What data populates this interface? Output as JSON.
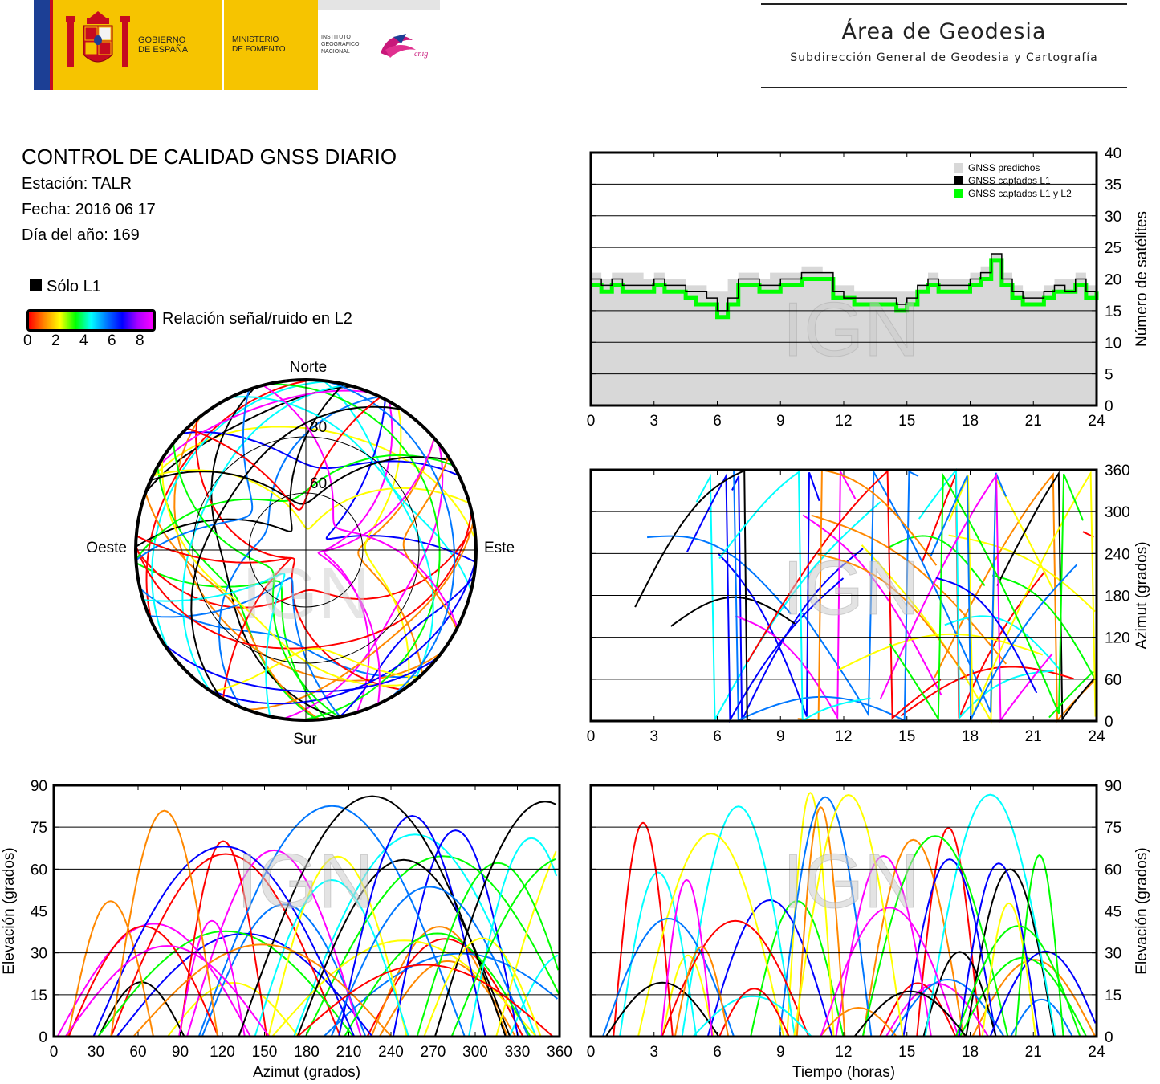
{
  "header": {
    "gobierno": [
      "GOBIERNO",
      "DE ESPAÑA"
    ],
    "ministerio": [
      "MINISTERIO",
      "DE FOMENTO"
    ],
    "instituto": [
      "INSTITUTO",
      "GEOGRÁFICO",
      "NACIONAL"
    ],
    "cnig": "cnig",
    "area_title": "Área de Geodesia",
    "area_subtitle": "Subdirección General de Geodesia y Cartografía"
  },
  "info": {
    "title": "CONTROL DE CALIDAD GNSS DIARIO",
    "station": "Estación: TALR",
    "date": "Fecha: 2016 06 17",
    "doy": "Día del año: 169"
  },
  "legend": {
    "solo_l1": "Sólo L1",
    "snr_label": "Relación señal/ruido en L2",
    "snr_ticks": [
      "0",
      "2",
      "4",
      "6",
      "8"
    ]
  },
  "watermark": "IGN",
  "colors": {
    "predicted": "#d8d8d8",
    "captured_l1": "#000000",
    "captured_l1_l2": "#00ff00",
    "snr_scale": [
      "#ff0000",
      "#ff8800",
      "#ffff00",
      "#00ff00",
      "#00ffff",
      "#0077ff",
      "#0000ff",
      "#ff00ff"
    ]
  },
  "chart_data": [
    {
      "type": "area",
      "id": "satellites",
      "ylabel": "Número de satélites",
      "xlim": [
        0,
        24
      ],
      "ylim": [
        0,
        40
      ],
      "xticks": [
        "0",
        "3",
        "6",
        "9",
        "12",
        "15",
        "18",
        "21",
        "24"
      ],
      "yticks": [
        "0",
        "5",
        "10",
        "15",
        "20",
        "25",
        "30",
        "35",
        "40"
      ],
      "grid": true,
      "legend_position": "top-right",
      "series": [
        {
          "name": "GNSS predichos",
          "x": [
            0,
            0.5,
            1,
            1.5,
            2,
            2.5,
            3,
            3.5,
            4,
            4.5,
            5,
            5.5,
            6,
            6.5,
            7,
            7.5,
            8,
            8.5,
            9,
            9.5,
            10,
            10.5,
            11,
            11.5,
            12,
            12.5,
            13,
            13.5,
            14,
            14.5,
            15,
            15.5,
            16,
            16.5,
            17,
            17.5,
            18,
            18.5,
            19,
            19.5,
            20,
            20.5,
            21,
            21.5,
            22,
            22.5,
            23,
            23.5,
            24
          ],
          "values": [
            21,
            20,
            21,
            21,
            21,
            20,
            21,
            20,
            20,
            19,
            19,
            18,
            18,
            20,
            21,
            21,
            20,
            21,
            21,
            21,
            22,
            22,
            21,
            19,
            19,
            18,
            18,
            18,
            18,
            18,
            18,
            19,
            21,
            20,
            20,
            20,
            21,
            22,
            24,
            21,
            19,
            18,
            18,
            19,
            20,
            20,
            21,
            19,
            20
          ]
        },
        {
          "name": "GNSS captados L1",
          "x": [
            0,
            0.5,
            1,
            1.5,
            2,
            2.5,
            3,
            3.5,
            4,
            4.5,
            5,
            5.5,
            6,
            6.5,
            7,
            7.5,
            8,
            8.5,
            9,
            9.5,
            10,
            10.5,
            11,
            11.5,
            12,
            12.5,
            13,
            13.5,
            14,
            14.5,
            15,
            15.5,
            16,
            16.5,
            17,
            17.5,
            18,
            18.5,
            19,
            19.5,
            20,
            20.5,
            21,
            21.5,
            22,
            22.5,
            23,
            23.5,
            24
          ],
          "values": [
            20,
            19,
            20,
            19,
            19,
            19,
            20,
            19,
            19,
            18,
            18,
            17,
            15,
            17,
            20,
            20,
            19,
            19,
            20,
            20,
            21,
            21,
            21,
            18,
            17,
            17,
            17,
            17,
            17,
            16,
            17,
            19,
            20,
            19,
            19,
            19,
            20,
            21,
            24,
            20,
            18,
            17,
            17,
            18,
            19,
            18,
            20,
            18,
            19
          ]
        },
        {
          "name": "GNSS captados L1 y L2",
          "x": [
            0,
            0.5,
            1,
            1.5,
            2,
            2.5,
            3,
            3.5,
            4,
            4.5,
            5,
            5.5,
            6,
            6.5,
            7,
            7.5,
            8,
            8.5,
            9,
            9.5,
            10,
            10.5,
            11,
            11.5,
            12,
            12.5,
            13,
            13.5,
            14,
            14.5,
            15,
            15.5,
            16,
            16.5,
            17,
            17.5,
            18,
            18.5,
            19,
            19.5,
            20,
            20.5,
            21,
            21.5,
            22,
            22.5,
            23,
            23.5,
            24
          ],
          "values": [
            19,
            18,
            19,
            18,
            18,
            18,
            19,
            18,
            18,
            17,
            16,
            16,
            14,
            16,
            19,
            19,
            18,
            18,
            19,
            19,
            20,
            20,
            20,
            17,
            17,
            16,
            16,
            16,
            16,
            15,
            16,
            18,
            19,
            18,
            18,
            18,
            19,
            20,
            23,
            19,
            17,
            16,
            16,
            17,
            18,
            18,
            19,
            17,
            18
          ]
        }
      ]
    },
    {
      "type": "scatter",
      "id": "skyplot",
      "cardinals": {
        "north": "Norte",
        "south": "Sur",
        "west": "Oeste",
        "east": "Este"
      },
      "ring_labels": [
        "30",
        "60"
      ]
    },
    {
      "type": "scatter",
      "id": "azimuth_time",
      "ylabel": "Azimut (grados)",
      "xlim": [
        0,
        24
      ],
      "ylim": [
        0,
        360
      ],
      "xticks": [
        "0",
        "3",
        "6",
        "9",
        "12",
        "15",
        "18",
        "21",
        "24"
      ],
      "yticks": [
        "0",
        "60",
        "120",
        "180",
        "240",
        "300",
        "360"
      ],
      "grid": true
    },
    {
      "type": "scatter",
      "id": "elevation_azimuth",
      "xlabel": "Azimut (grados)",
      "ylabel": "Elevación (grados)",
      "xlim": [
        0,
        360
      ],
      "ylim": [
        0,
        90
      ],
      "xticks": [
        "0",
        "30",
        "60",
        "90",
        "120",
        "150",
        "180",
        "210",
        "240",
        "270",
        "300",
        "330",
        "360"
      ],
      "yticks": [
        "0",
        "15",
        "30",
        "45",
        "60",
        "75",
        "90"
      ],
      "grid": true
    },
    {
      "type": "scatter",
      "id": "elevation_time",
      "xlabel": "Tiempo (horas)",
      "ylabel": "Elevación (grados)",
      "xlim": [
        0,
        24
      ],
      "ylim": [
        0,
        90
      ],
      "xticks": [
        "0",
        "3",
        "6",
        "9",
        "12",
        "15",
        "18",
        "21",
        "24"
      ],
      "yticks": [
        "0",
        "15",
        "30",
        "45",
        "60",
        "75",
        "90"
      ],
      "grid": true
    }
  ]
}
